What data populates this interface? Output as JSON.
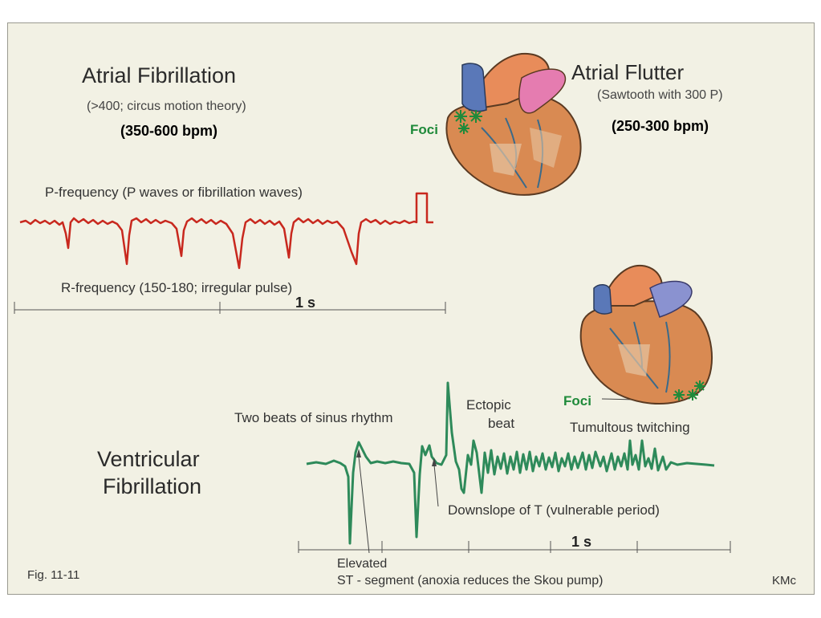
{
  "af": {
    "title": "Atrial  Fibrillation",
    "subtitle": "(>400; circus motion theory)",
    "bpm": "(350-600 bpm)",
    "p_label": "P-frequency (P waves or fibrillation waves)",
    "r_label": "R-frequency (150-180; irregular pulse)",
    "scale": "1 s"
  },
  "aflutter": {
    "title": "Atrial  Flutter",
    "subtitle": "(Sawtooth with 300 P)",
    "bpm": "(250-300 bpm)",
    "foci": "Foci"
  },
  "vf": {
    "title_line1": "Ventricular",
    "title_line2": "Fibrillation",
    "sinus": "Two beats of sinus rhythm",
    "ectopic_line1": "Ectopic",
    "ectopic_line2": "beat",
    "twitching": "Tumultous twitching",
    "downslope": "Downslope of T (vulnerable period)",
    "scale": "1 s",
    "elevated": "Elevated",
    "st_segment": "ST - segment (anoxia reduces the Skou pump)",
    "foci": "Foci"
  },
  "footer": {
    "fig": "Fig. 11-11",
    "credit": "KMc"
  },
  "colors": {
    "af_trace": "#c8281e",
    "vf_trace": "#2e8a5a",
    "foci": "#1f8a3a",
    "background": "#f2f1e4"
  }
}
